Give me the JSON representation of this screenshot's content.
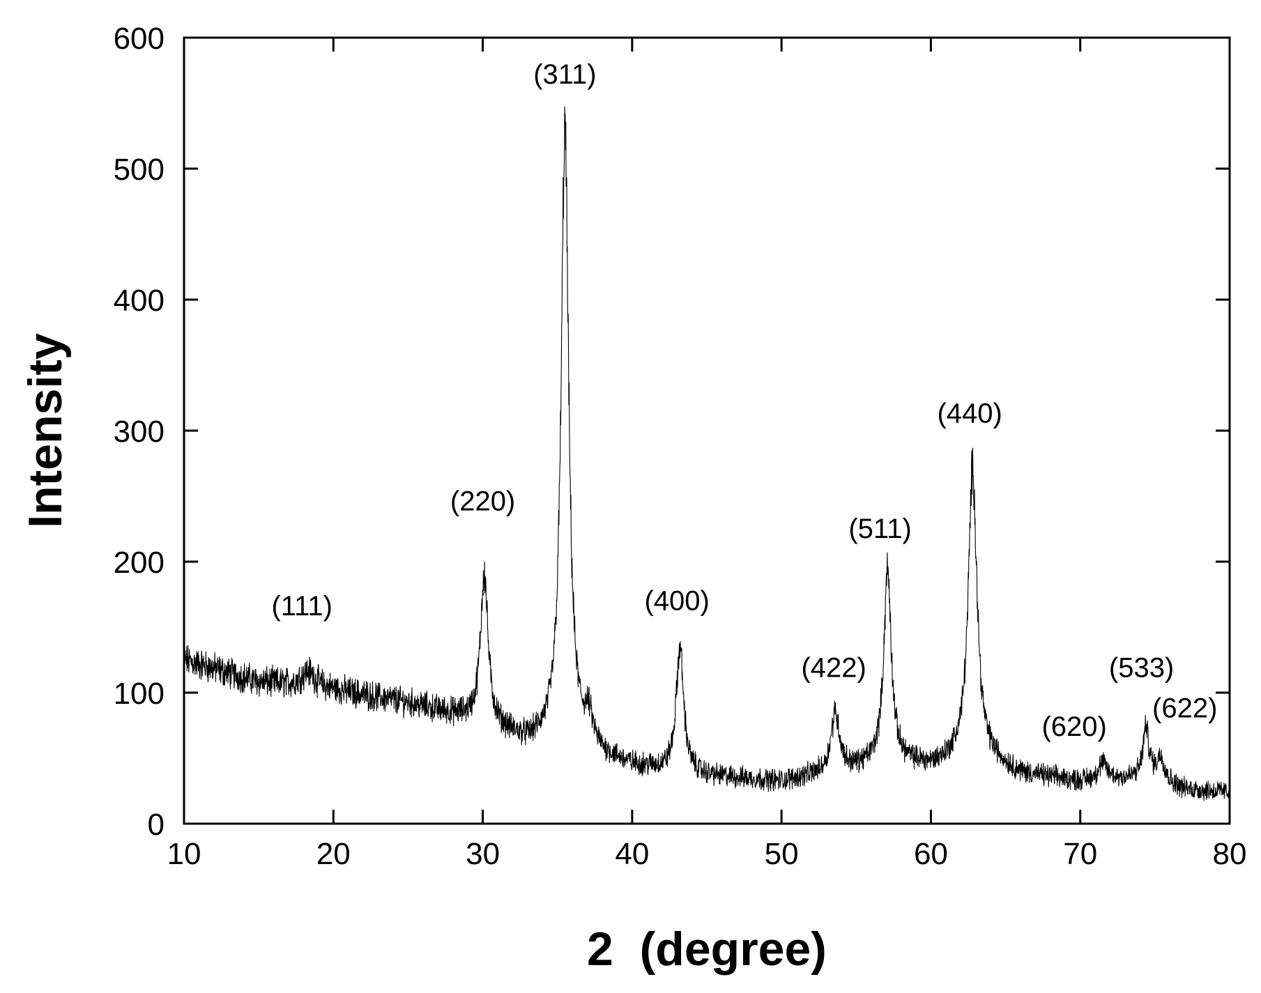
{
  "chart_data": {
    "type": "line",
    "title": "",
    "xlabel": "2  (degree)",
    "ylabel": "Intensity",
    "xlim": [
      10,
      80
    ],
    "ylim": [
      0,
      600
    ],
    "x_ticks": [
      10,
      20,
      30,
      40,
      50,
      60,
      70,
      80
    ],
    "y_ticks": [
      0,
      100,
      200,
      300,
      400,
      500,
      600
    ],
    "grid": false,
    "line_color": "#000000",
    "series": [
      {
        "background": [
          [
            10,
            125
          ],
          [
            15,
            108
          ],
          [
            20,
            102
          ],
          [
            25,
            92
          ],
          [
            29,
            80
          ],
          [
            31,
            72
          ],
          [
            33,
            62
          ],
          [
            35,
            66
          ],
          [
            37,
            60
          ],
          [
            38,
            52
          ],
          [
            40,
            44
          ],
          [
            45,
            36
          ],
          [
            50,
            32
          ],
          [
            53,
            38
          ],
          [
            55,
            42
          ],
          [
            57,
            48
          ],
          [
            60,
            44
          ],
          [
            62,
            50
          ],
          [
            64,
            48
          ],
          [
            66,
            38
          ],
          [
            70,
            32
          ],
          [
            73,
            34
          ],
          [
            75,
            34
          ],
          [
            77,
            26
          ],
          [
            80,
            24
          ]
        ],
        "peaks": [
          {
            "x": 18.3,
            "height": 12,
            "width": 1.2
          },
          {
            "x": 30.1,
            "height": 115,
            "width": 0.6
          },
          {
            "x": 35.5,
            "height": 465,
            "width": 0.6
          },
          {
            "x": 37.1,
            "height": 18,
            "width": 0.6
          },
          {
            "x": 43.2,
            "height": 95,
            "width": 0.6
          },
          {
            "x": 53.6,
            "height": 45,
            "width": 0.7
          },
          {
            "x": 57.1,
            "height": 145,
            "width": 0.6
          },
          {
            "x": 62.8,
            "height": 222,
            "width": 0.7
          },
          {
            "x": 71.5,
            "height": 12,
            "width": 0.8
          },
          {
            "x": 74.4,
            "height": 38,
            "width": 0.5
          },
          {
            "x": 75.4,
            "height": 18,
            "width": 0.6
          }
        ],
        "noise_amplitude": 9
      }
    ],
    "annotations": [
      {
        "text": "(111)",
        "x": 17.9,
        "y": 159
      },
      {
        "text": "(220)",
        "x": 30.0,
        "y": 239
      },
      {
        "text": "(311)",
        "x": 35.5,
        "y": 565
      },
      {
        "text": "(400)",
        "x": 43.0,
        "y": 163
      },
      {
        "text": "(422)",
        "x": 53.5,
        "y": 112
      },
      {
        "text": "(511)",
        "x": 56.6,
        "y": 218
      },
      {
        "text": "(440)",
        "x": 62.6,
        "y": 306
      },
      {
        "text": "(620)",
        "x": 69.6,
        "y": 67
      },
      {
        "text": "(533)",
        "x": 74.1,
        "y": 112
      },
      {
        "text": "(622)",
        "x": 77.0,
        "y": 81
      }
    ]
  }
}
